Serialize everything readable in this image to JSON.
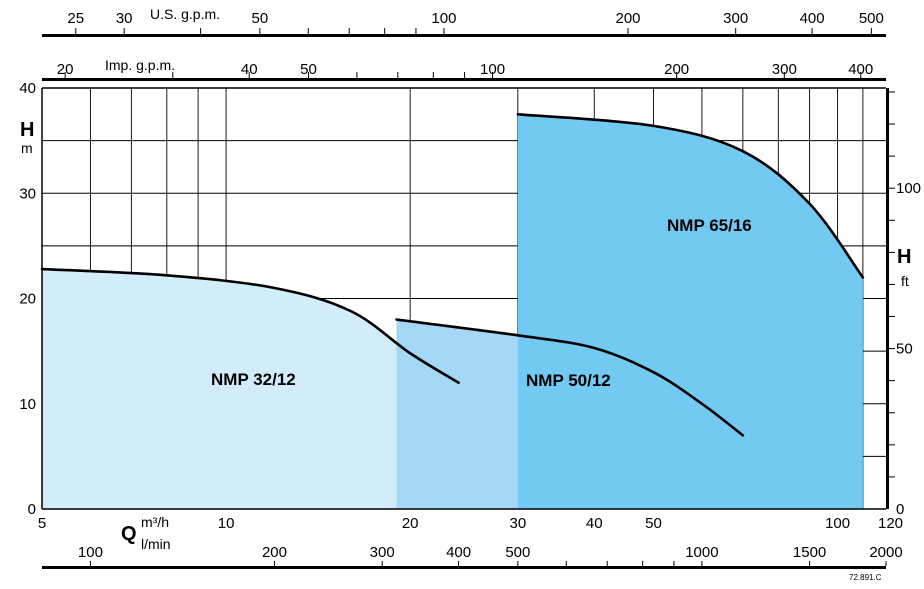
{
  "chart_data": {
    "type": "area",
    "x_scale": "log",
    "grid": true,
    "x_axis": {
      "symbol": "Q",
      "unit": "m³/h",
      "range": [
        5,
        120
      ],
      "ticks": [
        5,
        10,
        20,
        30,
        40,
        50,
        100,
        120
      ]
    },
    "y_axis": {
      "symbol": "H",
      "unit": "m",
      "range": [
        0,
        40
      ],
      "ticks": [
        0,
        10,
        20,
        30,
        40
      ]
    },
    "secondary_axes": {
      "us_gpm": {
        "label": "U.S. g.p.m.",
        "ticks": [
          25,
          30,
          50,
          100,
          200,
          300,
          400,
          500
        ]
      },
      "imp_gpm": {
        "label": "Imp. g.p.m.",
        "ticks": [
          20,
          40,
          50,
          100,
          200,
          300,
          400
        ]
      },
      "l_min": {
        "label": "l/min",
        "ticks": [
          100,
          200,
          300,
          400,
          500,
          1000,
          1500,
          2000
        ]
      },
      "head_ft": {
        "symbol": "H",
        "unit": "ft",
        "ticks": [
          0,
          50,
          100
        ]
      }
    },
    "series": [
      {
        "name": "NMP 32/12",
        "color": "#d2ecfa",
        "x": [
          5,
          8,
          12,
          16,
          20,
          24
        ],
        "y": [
          22.8,
          22.2,
          21,
          18.8,
          14.8,
          12
        ]
      },
      {
        "name": "NMP 50/12",
        "color": "#a4d8f6",
        "x": [
          19,
          30,
          40,
          50,
          60,
          70
        ],
        "y": [
          18,
          16.5,
          15.3,
          13,
          10,
          7
        ]
      },
      {
        "name": "NMP 65/16",
        "color": "#72c9f1",
        "x": [
          30,
          50,
          70,
          90,
          110
        ],
        "y": [
          37.5,
          36.4,
          34,
          29,
          22
        ]
      }
    ],
    "document_code": "72.891.C"
  }
}
